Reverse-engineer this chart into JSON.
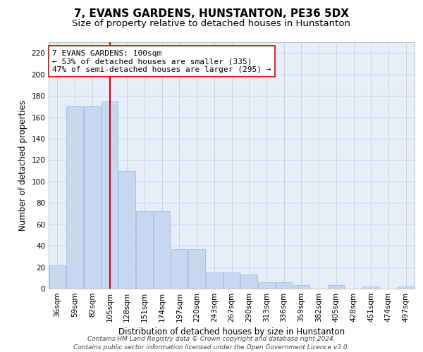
{
  "title": "7, EVANS GARDENS, HUNSTANTON, PE36 5DX",
  "subtitle": "Size of property relative to detached houses in Hunstanton",
  "xlabel": "Distribution of detached houses by size in Hunstanton",
  "ylabel": "Number of detached properties",
  "categories": [
    "36sqm",
    "59sqm",
    "82sqm",
    "105sqm",
    "128sqm",
    "151sqm",
    "174sqm",
    "197sqm",
    "220sqm",
    "243sqm",
    "267sqm",
    "290sqm",
    "313sqm",
    "336sqm",
    "359sqm",
    "382sqm",
    "405sqm",
    "428sqm",
    "451sqm",
    "474sqm",
    "497sqm"
  ],
  "values": [
    22,
    170,
    170,
    175,
    110,
    72,
    72,
    37,
    37,
    15,
    15,
    13,
    6,
    6,
    3,
    0,
    3,
    0,
    2,
    0,
    2
  ],
  "bar_color": "#c5d8f0",
  "bar_edge_color": "#9ab5d8",
  "vline_x_idx": 3,
  "vline_color": "#cc0000",
  "annotation_text": "7 EVANS GARDENS: 100sqm\n← 53% of detached houses are smaller (335)\n47% of semi-detached houses are larger (295) →",
  "annotation_box_facecolor": "#ffffff",
  "annotation_box_edgecolor": "#cc0000",
  "ylim": [
    0,
    230
  ],
  "yticks": [
    0,
    20,
    40,
    60,
    80,
    100,
    120,
    140,
    160,
    180,
    200,
    220
  ],
  "plot_bg_color": "#e8eef8",
  "fig_bg_color": "#ffffff",
  "footer": "Contains HM Land Registry data © Crown copyright and database right 2024.\nContains public sector information licensed under the Open Government Licence v3.0.",
  "title_fontsize": 11,
  "subtitle_fontsize": 9.5,
  "axis_label_fontsize": 8.5,
  "tick_fontsize": 7.5,
  "annotation_fontsize": 8,
  "footer_fontsize": 6.5
}
